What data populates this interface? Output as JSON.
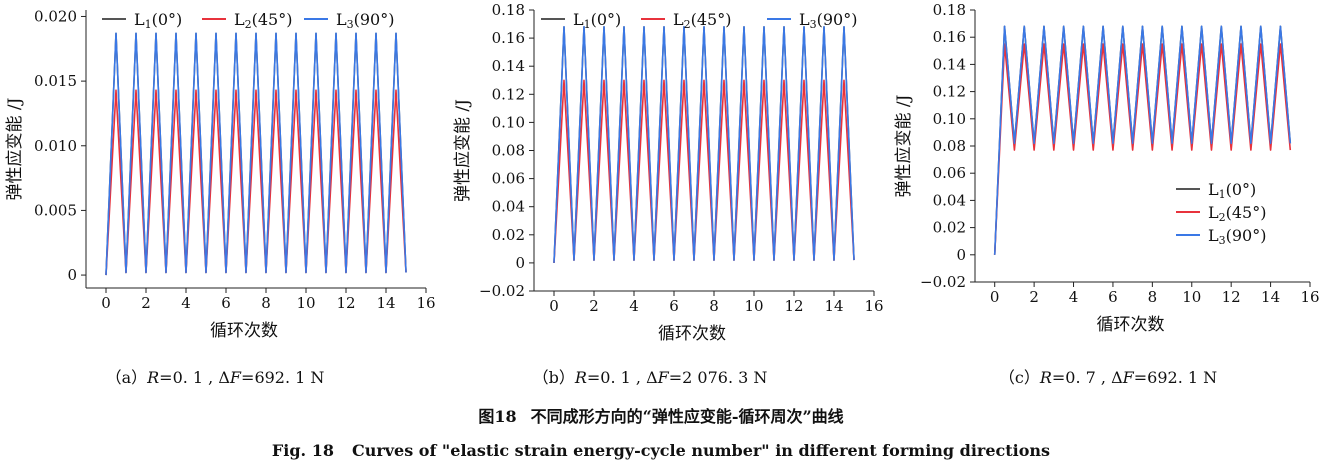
{
  "chart_data": [
    {
      "type": "line",
      "panel": "(a)",
      "caption": {
        "label": "（a）",
        "r_var": "R",
        "r_value": "=0. 1 , ",
        "delta_symbol": "Δ",
        "f_var": "F",
        "f_value": "=692. 1 N"
      },
      "xlabel": "循环次数",
      "ylabel": "弹性应变能 /J",
      "xlim": [
        -1,
        16
      ],
      "ylim": [
        -0.001,
        0.0205
      ],
      "xticks": [
        0,
        2,
        4,
        6,
        8,
        10,
        12,
        14,
        16
      ],
      "yticks": [
        0,
        0.005,
        0.01,
        0.015,
        0.02
      ],
      "ytick_labels": [
        "0",
        "0.005",
        "0.010",
        "0.015",
        "0.020"
      ],
      "legend_position": "top",
      "cycles": 15,
      "series": [
        {
          "name": "L1(0°)",
          "color": "#555555",
          "min_values": [
            0,
            0.0002,
            0.0002,
            0.0002,
            0.0002,
            0.0002,
            0.0002,
            0.0002,
            0.0002,
            0.0002,
            0.0002,
            0.0002,
            0.0002,
            0.0002,
            0.0002
          ],
          "max_values": [
            0.0187,
            0.0187,
            0.0187,
            0.0187,
            0.0187,
            0.0187,
            0.0187,
            0.0187,
            0.0187,
            0.0187,
            0.0187,
            0.0187,
            0.0187,
            0.0187,
            0.0187
          ]
        },
        {
          "name": "L2(45°)",
          "color": "#e8323c",
          "min_values": [
            0,
            0.0002,
            0.0002,
            0.0002,
            0.0002,
            0.0002,
            0.0002,
            0.0002,
            0.0002,
            0.0002,
            0.0002,
            0.0002,
            0.0002,
            0.0002,
            0.0002
          ],
          "max_values": [
            0.0143,
            0.0143,
            0.0143,
            0.0143,
            0.0143,
            0.0143,
            0.0143,
            0.0143,
            0.0143,
            0.0143,
            0.0143,
            0.0143,
            0.0143,
            0.0143,
            0.0143
          ]
        },
        {
          "name": "L3(90°)",
          "color": "#3a78e6",
          "min_values": [
            0,
            0.0002,
            0.0002,
            0.0002,
            0.0002,
            0.0002,
            0.0002,
            0.0002,
            0.0002,
            0.0002,
            0.0002,
            0.0002,
            0.0002,
            0.0002,
            0.0002
          ],
          "max_values": [
            0.0187,
            0.0187,
            0.0187,
            0.0187,
            0.0187,
            0.0187,
            0.0187,
            0.0187,
            0.0187,
            0.0187,
            0.0187,
            0.0187,
            0.0187,
            0.0187,
            0.0187
          ]
        }
      ]
    },
    {
      "type": "line",
      "panel": "(b)",
      "caption": {
        "label": "（b）",
        "r_var": "R",
        "r_value": "=0. 1 , ",
        "delta_symbol": "Δ",
        "f_var": "F",
        "f_value": "=2 076. 3 N"
      },
      "xlabel": "循环次数",
      "ylabel": "弹性应变能 /J",
      "xlim": [
        -1,
        16
      ],
      "ylim": [
        -0.02,
        0.18
      ],
      "xticks": [
        0,
        2,
        4,
        6,
        8,
        10,
        12,
        14,
        16
      ],
      "yticks": [
        -0.02,
        0,
        0.02,
        0.04,
        0.06,
        0.08,
        0.1,
        0.12,
        0.14,
        0.16,
        0.18
      ],
      "ytick_labels": [
        "−0.02",
        "0",
        "0.02",
        "0.04",
        "0.06",
        "0.08",
        "0.10",
        "0.12",
        "0.14",
        "0.16",
        "0.18"
      ],
      "legend_position": "top",
      "cycles": 15,
      "series": [
        {
          "name": "L1(0°)",
          "color": "#555555",
          "min_values": [
            0,
            0.002,
            0.002,
            0.002,
            0.002,
            0.002,
            0.002,
            0.002,
            0.002,
            0.002,
            0.002,
            0.002,
            0.002,
            0.002,
            0.002
          ],
          "max_values": [
            0.168,
            0.168,
            0.168,
            0.168,
            0.168,
            0.168,
            0.168,
            0.168,
            0.168,
            0.168,
            0.168,
            0.168,
            0.168,
            0.168,
            0.168
          ]
        },
        {
          "name": "L2(45°)",
          "color": "#e8323c",
          "min_values": [
            0,
            0.002,
            0.002,
            0.002,
            0.002,
            0.002,
            0.002,
            0.002,
            0.002,
            0.002,
            0.002,
            0.002,
            0.002,
            0.002,
            0.002
          ],
          "max_values": [
            0.13,
            0.13,
            0.13,
            0.13,
            0.13,
            0.13,
            0.13,
            0.13,
            0.13,
            0.13,
            0.13,
            0.13,
            0.13,
            0.13,
            0.13
          ]
        },
        {
          "name": "L3(90°)",
          "color": "#3a78e6",
          "min_values": [
            0,
            0.002,
            0.002,
            0.002,
            0.002,
            0.002,
            0.002,
            0.002,
            0.002,
            0.002,
            0.002,
            0.002,
            0.002,
            0.002,
            0.002
          ],
          "max_values": [
            0.168,
            0.168,
            0.168,
            0.168,
            0.168,
            0.168,
            0.168,
            0.168,
            0.168,
            0.168,
            0.168,
            0.168,
            0.168,
            0.168,
            0.168
          ]
        }
      ]
    },
    {
      "type": "line",
      "panel": "(c)",
      "caption": {
        "label": "（c）",
        "r_var": "R",
        "r_value": "=0. 7 , ",
        "delta_symbol": "Δ",
        "f_var": "F",
        "f_value": "=692. 1 N"
      },
      "xlabel": "循环次数",
      "ylabel": "弹性应变能 /J",
      "xlim": [
        -1,
        16
      ],
      "ylim": [
        -0.02,
        0.18
      ],
      "xticks": [
        0,
        2,
        4,
        6,
        8,
        10,
        12,
        14,
        16
      ],
      "yticks": [
        -0.02,
        0,
        0.02,
        0.04,
        0.06,
        0.08,
        0.1,
        0.12,
        0.14,
        0.16,
        0.18
      ],
      "ytick_labels": [
        "−0.02",
        "0",
        "0.02",
        "0.04",
        "0.06",
        "0.08",
        "0.10",
        "0.12",
        "0.14",
        "0.16",
        "0.18"
      ],
      "legend_position": "center-right",
      "cycles": 15,
      "series": [
        {
          "name": "L1(0°)",
          "color": "#555555",
          "min_values": [
            0,
            0.082,
            0.082,
            0.082,
            0.082,
            0.082,
            0.082,
            0.082,
            0.082,
            0.082,
            0.082,
            0.082,
            0.082,
            0.082,
            0.082
          ],
          "max_values": [
            0.168,
            0.168,
            0.168,
            0.168,
            0.168,
            0.168,
            0.168,
            0.168,
            0.168,
            0.168,
            0.168,
            0.168,
            0.168,
            0.168,
            0.168
          ]
        },
        {
          "name": "L2(45°)",
          "color": "#e8323c",
          "min_values": [
            0,
            0.077,
            0.077,
            0.077,
            0.077,
            0.077,
            0.077,
            0.077,
            0.077,
            0.077,
            0.077,
            0.077,
            0.077,
            0.077,
            0.077
          ],
          "max_values": [
            0.155,
            0.155,
            0.155,
            0.155,
            0.155,
            0.155,
            0.155,
            0.155,
            0.155,
            0.155,
            0.155,
            0.155,
            0.155,
            0.155,
            0.155
          ]
        },
        {
          "name": "L3(90°)",
          "color": "#3a78e6",
          "min_values": [
            0,
            0.082,
            0.082,
            0.082,
            0.082,
            0.082,
            0.082,
            0.082,
            0.082,
            0.082,
            0.082,
            0.082,
            0.082,
            0.082,
            0.082
          ],
          "max_values": [
            0.168,
            0.168,
            0.168,
            0.168,
            0.168,
            0.168,
            0.168,
            0.168,
            0.168,
            0.168,
            0.168,
            0.168,
            0.168,
            0.168,
            0.168
          ]
        }
      ]
    }
  ],
  "figure": {
    "title_cn_number": "图18",
    "title_cn_text": "不同成形方向的“弹性应变能-循环周次”曲线",
    "title_en_number": "Fig. 18",
    "title_en_text": "Curves of \"elastic strain energy-cycle number\" in different forming directions"
  }
}
